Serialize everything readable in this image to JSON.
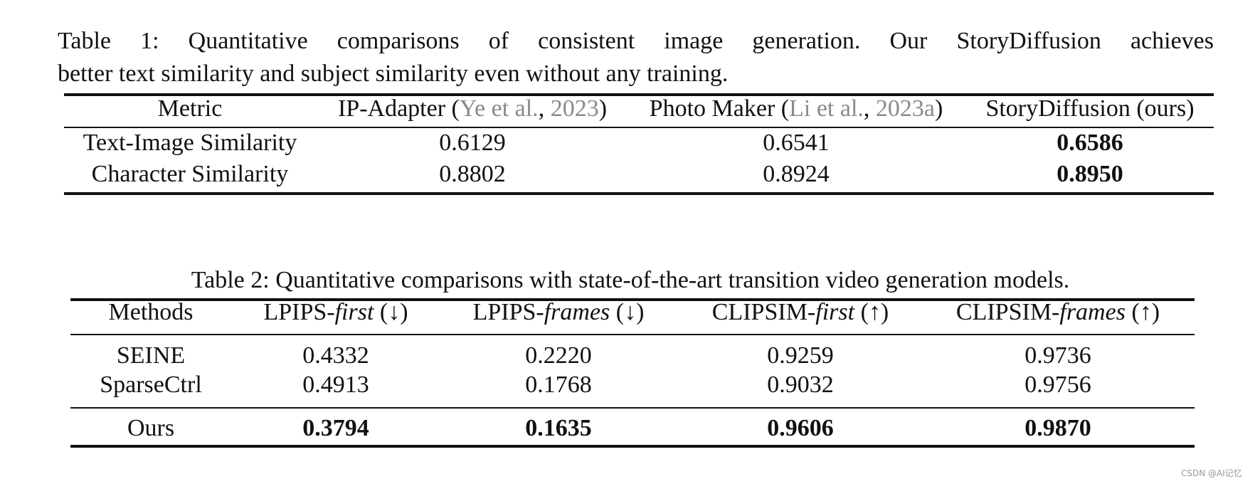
{
  "table1": {
    "caption": [
      "Table 1:  Quantitative comparisons of consistent image generation.  Our StoryDiffusion achieves",
      "better text similarity and subject similarity even without any training."
    ],
    "cite_color": "#8a8a8a",
    "header": [
      [
        {
          "text": "Metric"
        }
      ],
      [
        {
          "text": "IP-Adapter ("
        },
        {
          "text": "Ye et al.",
          "cite": true
        },
        {
          "text": ", "
        },
        {
          "text": "2023",
          "cite": true
        },
        {
          "text": ")"
        }
      ],
      [
        {
          "text": "Photo Maker ("
        },
        {
          "text": "Li et al.",
          "cite": true
        },
        {
          "text": ", "
        },
        {
          "text": "2023a",
          "cite": true
        },
        {
          "text": ")"
        }
      ],
      [
        {
          "text": "StoryDiffusion (ours)"
        }
      ]
    ],
    "rows": [
      [
        {
          "text": "Text-Image Similarity"
        },
        {
          "text": "0.6129"
        },
        {
          "text": "0.6541"
        },
        {
          "text": "0.6586",
          "bold": true
        }
      ],
      [
        {
          "text": "Character Similarity"
        },
        {
          "text": "0.8802"
        },
        {
          "text": "0.8924"
        },
        {
          "text": "0.8950",
          "bold": true
        }
      ]
    ]
  },
  "table2": {
    "caption": "Table 2: Quantitative comparisons with state-of-the-art transition video generation models.",
    "header": [
      [
        {
          "text": "Methods"
        }
      ],
      [
        {
          "text": "LPIPS-"
        },
        {
          "text": "first",
          "italic": true
        },
        {
          "text": " (↓)"
        }
      ],
      [
        {
          "text": "LPIPS-"
        },
        {
          "text": "frames",
          "italic": true
        },
        {
          "text": " (↓)"
        }
      ],
      [
        {
          "text": "CLIPSIM-"
        },
        {
          "text": "first",
          "italic": true
        },
        {
          "text": " (↑)"
        }
      ],
      [
        {
          "text": "CLIPSIM-"
        },
        {
          "text": "frames",
          "italic": true
        },
        {
          "text": " (↑)"
        }
      ]
    ],
    "rows": [
      [
        {
          "text": "SEINE"
        },
        {
          "text": "0.4332"
        },
        {
          "text": "0.2220"
        },
        {
          "text": "0.9259"
        },
        {
          "text": "0.9736"
        }
      ],
      [
        {
          "text": "SparseCtrl"
        },
        {
          "text": "0.4913"
        },
        {
          "text": "0.1768"
        },
        {
          "text": "0.9032"
        },
        {
          "text": "0.9756"
        }
      ],
      [
        {
          "text": "Ours"
        },
        {
          "text": "0.3794",
          "bold": true
        },
        {
          "text": "0.1635",
          "bold": true
        },
        {
          "text": "0.9606",
          "bold": true
        },
        {
          "text": "0.9870",
          "bold": true
        }
      ]
    ]
  },
  "watermark": "CSDN @AI记忆"
}
